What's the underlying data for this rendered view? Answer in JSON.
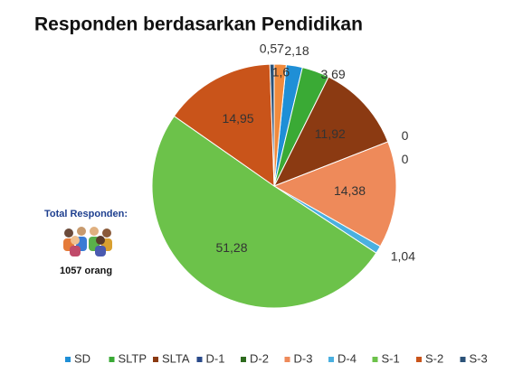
{
  "chart_data": {
    "type": "pie",
    "title": "Responden berdasarkan Pendidikan",
    "categories": [
      "SD",
      "SLTP",
      "SLTA",
      "D-1",
      "D-2",
      "D-3",
      "D-4",
      "S-1",
      "S-2",
      "S-3",
      null
    ],
    "values": [
      2.18,
      3.69,
      11.92,
      0,
      0,
      14.38,
      1.04,
      51.28,
      14.95,
      0.57,
      1.6
    ],
    "value_labels": [
      "2,18",
      "3,69",
      "11,92",
      "0",
      "0",
      "14,38",
      "1,04",
      "51,28",
      "14,95",
      "0,57",
      "1,6"
    ],
    "colors": [
      "#1f8fd6",
      "#3aaa35",
      "#8b3a12",
      "#2a4a8a",
      "#2e6b1e",
      "#ee8a5a",
      "#4ab0e0",
      "#6cc24a",
      "#c9541a",
      "#2b5278",
      "#f08a3c"
    ],
    "legend": "bottom",
    "total_label": "Total Responden:",
    "total_value": "1057 orang"
  }
}
